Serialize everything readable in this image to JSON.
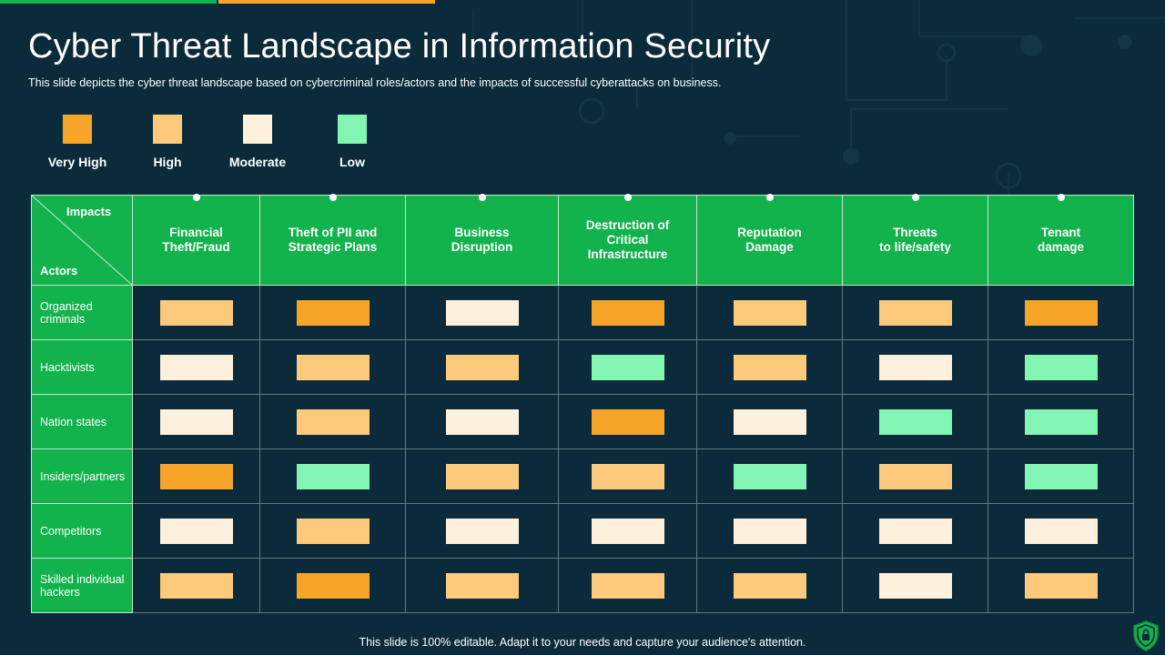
{
  "title": "Cyber Threat Landscape in Information Security",
  "subtitle": "This slide depicts the cyber threat landscape based on cybercriminal roles/actors and the impacts of successful cyberattacks on business.",
  "legend": [
    {
      "label": "Very High",
      "color": "#f7a529"
    },
    {
      "label": "High",
      "color": "#fdca7c"
    },
    {
      "label": "Moderate",
      "color": "#fdf0dc"
    },
    {
      "label": "Low",
      "color": "#83f5b3"
    }
  ],
  "table": {
    "corner_top": "Impacts",
    "corner_bottom": "Actors",
    "columns": [
      [
        "Financial",
        "Theft/Fraud"
      ],
      [
        "Theft of PII and",
        "Strategic Plans"
      ],
      [
        "Business",
        "Disruption"
      ],
      [
        "Destruction  of",
        "Critical",
        "Infrastructure"
      ],
      [
        "Reputation",
        "Damage"
      ],
      [
        "Threats",
        "to life/safety"
      ],
      [
        "Tenant",
        "damage"
      ]
    ],
    "rows": [
      {
        "actor": [
          "Organized",
          "criminals"
        ],
        "levels": [
          "High",
          "Very High",
          "Moderate",
          "Very High",
          "High",
          "High",
          "Very High"
        ]
      },
      {
        "actor": [
          "Hacktivists"
        ],
        "levels": [
          "Moderate",
          "High",
          "High",
          "Low",
          "High",
          "Moderate",
          "Low"
        ]
      },
      {
        "actor": [
          "Nation states"
        ],
        "levels": [
          "Moderate",
          "High",
          "Moderate",
          "Very High",
          "Moderate",
          "Low",
          "Low"
        ]
      },
      {
        "actor": [
          "Insiders/partners"
        ],
        "levels": [
          "Very High",
          "Low",
          "High",
          "High",
          "Low",
          "High",
          "Low"
        ]
      },
      {
        "actor": [
          "Competitors"
        ],
        "levels": [
          "Moderate",
          "High",
          "Moderate",
          "Moderate",
          "Moderate",
          "Moderate",
          "Moderate"
        ]
      },
      {
        "actor": [
          "Skilled individual",
          "hackers"
        ],
        "levels": [
          "High",
          "Very High",
          "High",
          "High",
          "High",
          "Moderate",
          "High"
        ]
      }
    ]
  },
  "footer": "This slide is 100% editable. Adapt it to your needs and capture your audience's attention.",
  "colors": {
    "background": "#0b2a3a",
    "header_green": "#12b24c",
    "accent_orange": "#f7a529"
  },
  "icons": {
    "bottom_right": "shield-lock-icon"
  }
}
